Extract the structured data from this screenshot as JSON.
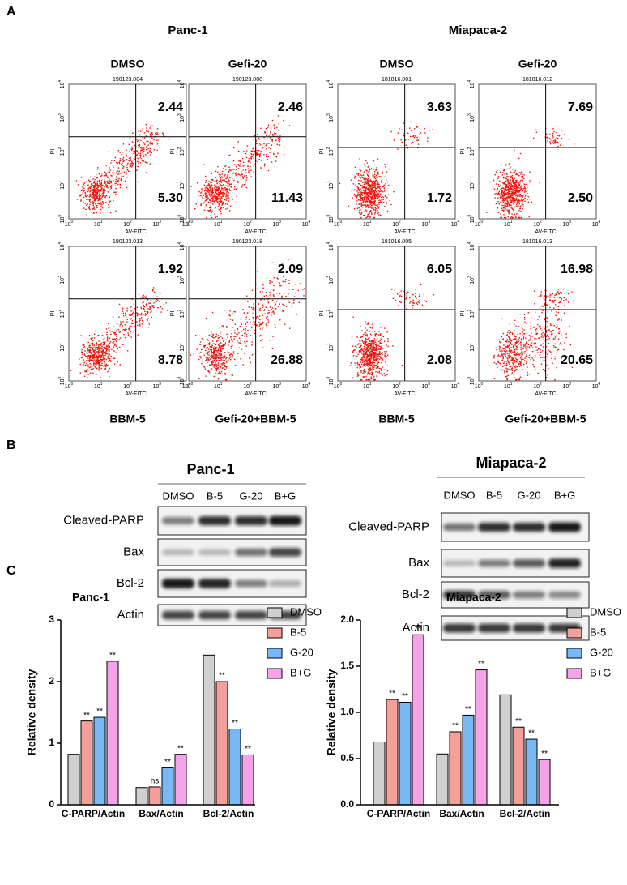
{
  "panel_labels": [
    "A",
    "B",
    "C"
  ],
  "flow": {
    "axis_x": "AV-FITC",
    "axis_y": "PI",
    "tick_base": "10",
    "tick_exponents": [
      "0",
      "1",
      "2",
      "3",
      "4"
    ],
    "groups": [
      {
        "title": "Panc-1",
        "plots": [
          {
            "label": "DMSO",
            "id": "190123.004",
            "upper_right": "2.44",
            "lower_right": "5.30"
          },
          {
            "label": "Gefi-20",
            "id": "190123.008",
            "upper_right": "2.46",
            "lower_right": "11.43"
          },
          {
            "label": "BBM-5",
            "id": "190123.013",
            "upper_right": "1.92",
            "lower_right": "8.78"
          },
          {
            "label": "Gefi-20+BBM-5",
            "id": "190123.018",
            "upper_right": "2.09",
            "lower_right": "26.88"
          }
        ]
      },
      {
        "title": "Miapaca-2",
        "plots": [
          {
            "label": "DMSO",
            "id": "181016.001",
            "upper_right": "3.63",
            "lower_right": "1.72"
          },
          {
            "label": "Gefi-20",
            "id": "181016.012",
            "upper_right": "7.69",
            "lower_right": "2.50"
          },
          {
            "label": "BBM-5",
            "id": "181016.005",
            "upper_right": "6.05",
            "lower_right": "2.08"
          },
          {
            "label": "Gefi-20+BBM-5",
            "id": "181016.013",
            "upper_right": "16.98",
            "lower_right": "20.65"
          }
        ]
      }
    ]
  },
  "blots": {
    "groups": [
      {
        "title": "Panc-1",
        "lanes": [
          "DMSO",
          "B-5",
          "G-20",
          "B+G"
        ],
        "proteins": [
          "Cleaved-PARP",
          "Bax",
          "Bcl-2",
          "Actin"
        ]
      },
      {
        "title": "Miapaca-2",
        "lanes": [
          "DMSO",
          "B-5",
          "G-20",
          "B+G"
        ],
        "proteins": [
          "Cleaved-PARP",
          "Bax",
          "Bcl-2",
          "Actin"
        ]
      }
    ]
  },
  "chart_data": [
    {
      "type": "bar",
      "title": "Panc-1",
      "y_label": "Relative density",
      "categories": [
        "C-PARP/Actin",
        "Bax/Actin",
        "Bcl-2/Actin"
      ],
      "ylim": [
        0,
        3
      ],
      "yticks": [
        0,
        1,
        2,
        3
      ],
      "series": [
        {
          "name": "DMSO",
          "color": "#d0d0d0",
          "values": [
            0.82,
            0.28,
            2.43
          ],
          "annotations": [
            null,
            null,
            null
          ]
        },
        {
          "name": "B-5",
          "color": "#f4a09a",
          "values": [
            1.36,
            0.29,
            2.0
          ],
          "annotations": [
            "**",
            "ns",
            "**"
          ]
        },
        {
          "name": "G-20",
          "color": "#7ab8f5",
          "values": [
            1.42,
            0.6,
            1.23
          ],
          "annotations": [
            "**",
            "**",
            "**"
          ]
        },
        {
          "name": "B+G",
          "color": "#f5a3e8",
          "values": [
            2.33,
            0.82,
            0.81
          ],
          "annotations": [
            "**",
            "**",
            "**"
          ]
        }
      ]
    },
    {
      "type": "bar",
      "title": "Miapaca-2",
      "y_label": "Relative density",
      "categories": [
        "C-PARP/Actin",
        "Bax/Actin",
        "Bcl-2/Actin"
      ],
      "ylim": [
        0,
        2
      ],
      "yticks": [
        {
          "value": 0,
          "label": "0.0"
        },
        {
          "value": 0.5,
          "label": "0.5"
        },
        {
          "value": 1,
          "label": "1.0"
        },
        {
          "value": 1.5,
          "label": "1.5"
        },
        {
          "value": 2,
          "label": "2.0"
        }
      ],
      "series": [
        {
          "name": "DMSO",
          "color": "#d0d0d0",
          "values": [
            0.68,
            0.55,
            1.19
          ],
          "annotations": [
            null,
            null,
            null
          ]
        },
        {
          "name": "B-5",
          "color": "#f4a09a",
          "values": [
            1.14,
            0.79,
            0.84
          ],
          "annotations": [
            "**",
            "**",
            "**"
          ]
        },
        {
          "name": "G-20",
          "color": "#7ab8f5",
          "values": [
            1.11,
            0.97,
            0.71
          ],
          "annotations": [
            "**",
            "**",
            "**"
          ]
        },
        {
          "name": "B+G",
          "color": "#f5a3e8",
          "values": [
            1.84,
            1.46,
            0.49
          ],
          "annotations": [
            "**",
            "**",
            "**"
          ]
        }
      ]
    }
  ]
}
